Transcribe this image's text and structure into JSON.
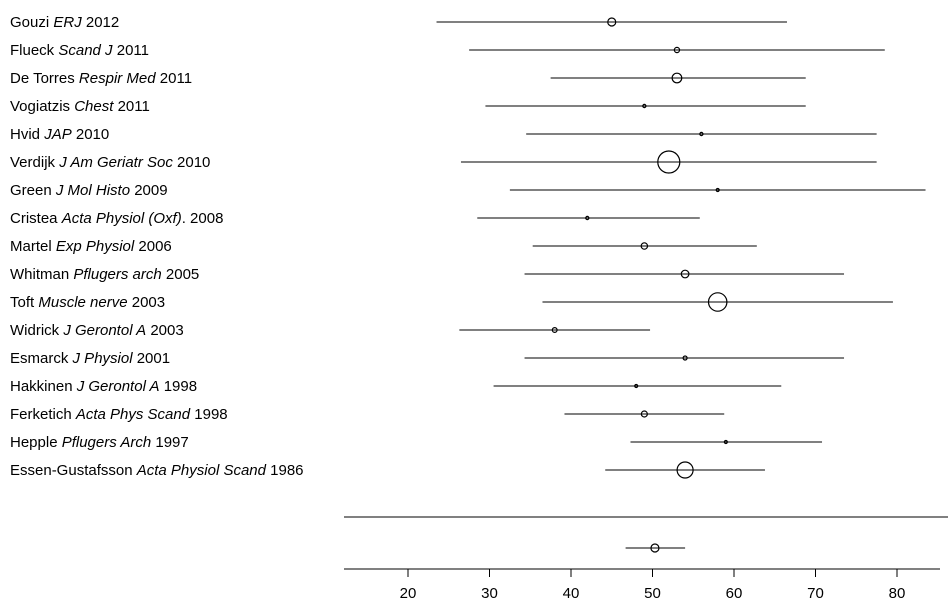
{
  "chart_data": {
    "type": "forest",
    "title": "",
    "xlabel": "",
    "ylabel": "",
    "xlim": [
      12.5,
      88.5
    ],
    "xticks": [
      20,
      30,
      40,
      50,
      60,
      70,
      80
    ],
    "grid": false,
    "legend": "none",
    "studies": [
      {
        "author": "Gouzi ",
        "journal": "ERJ",
        "year": " 2012",
        "estimate": 45,
        "lower": 23.5,
        "upper": 66.5,
        "weight": 2
      },
      {
        "author": "Flueck ",
        "journal": "Scand J",
        "year": " 2011",
        "estimate": 53,
        "lower": 27.5,
        "upper": 78.5,
        "weight": 1.3
      },
      {
        "author": "De Torres ",
        "journal": "Respir Med",
        "year": " 2011",
        "estimate": 53,
        "lower": 37.5,
        "upper": 68.8,
        "weight": 2.4
      },
      {
        "author": "Vogiatzis ",
        "journal": "Chest",
        "year": " 2011",
        "estimate": 49,
        "lower": 29.5,
        "upper": 68.8,
        "weight": 0.8
      },
      {
        "author": "Hvid ",
        "journal": "JAP",
        "year": " 2010",
        "estimate": 56,
        "lower": 34.5,
        "upper": 77.5,
        "weight": 0.8
      },
      {
        "author": "Verdijk ",
        "journal": "J Am Geriatr Soc",
        "year": " 2010",
        "estimate": 52,
        "lower": 26.5,
        "upper": 77.5,
        "weight": 5.5
      },
      {
        "author": "Green ",
        "journal": "J Mol Histo",
        "year": " 2009",
        "estimate": 58,
        "lower": 32.5,
        "upper": 83.5,
        "weight": 0.6
      },
      {
        "author": "Cristea ",
        "journal": "Acta Physiol (Oxf)",
        "year": ". 2008",
        "estimate": 42,
        "lower": 28.5,
        "upper": 55.8,
        "weight": 0.8
      },
      {
        "author": "Martel ",
        "journal": "Exp Physiol",
        "year": " 2006",
        "estimate": 49,
        "lower": 35.3,
        "upper": 62.8,
        "weight": 1.6
      },
      {
        "author": "Whitman ",
        "journal": "Pflugers arch",
        "year": " 2005",
        "estimate": 54,
        "lower": 34.3,
        "upper": 73.5,
        "weight": 1.9
      },
      {
        "author": "Toft ",
        "journal": "Muscle nerve",
        "year": " 2003",
        "estimate": 58,
        "lower": 36.5,
        "upper": 79.5,
        "weight": 4.6
      },
      {
        "author": "Widrick ",
        "journal": "J Gerontol A",
        "year": " 2003",
        "estimate": 38,
        "lower": 26.3,
        "upper": 49.7,
        "weight": 1.2
      },
      {
        "author": "Esmarck ",
        "journal": "J Physiol",
        "year": " 2001",
        "estimate": 54,
        "lower": 34.3,
        "upper": 73.5,
        "weight": 1.0
      },
      {
        "author": "Hakkinen ",
        "journal": "J Gerontol A",
        "year": " 1998",
        "estimate": 48,
        "lower": 30.5,
        "upper": 65.8,
        "weight": 0.7
      },
      {
        "author": "Ferketich ",
        "journal": "Acta Phys Scand",
        "year": " 1998",
        "estimate": 49,
        "lower": 39.2,
        "upper": 58.8,
        "weight": 1.5
      },
      {
        "author": "Hepple ",
        "journal": "Pflugers Arch",
        "year": " 1997",
        "estimate": 59,
        "lower": 47.3,
        "upper": 70.8,
        "weight": 0.7
      },
      {
        "author": "Essen-Gustafsson ",
        "journal": "Acta Physiol Scand",
        "year": " 1986",
        "estimate": 54,
        "lower": 44.2,
        "upper": 63.8,
        "weight": 4.0
      }
    ],
    "summary": {
      "estimate": 50.3,
      "lower": 46.7,
      "upper": 54.0,
      "weight": 2
    }
  }
}
